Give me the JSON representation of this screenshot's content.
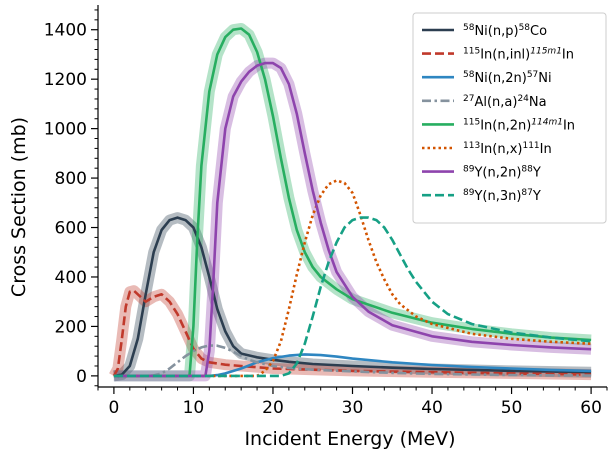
{
  "chart_data": {
    "type": "line",
    "xlabel": "Incident Energy (MeV)",
    "ylabel": "Cross Section (mb)",
    "xlim": [
      -2,
      62
    ],
    "ylim": [
      -45,
      1500
    ],
    "x_ticks": [
      0,
      10,
      20,
      30,
      40,
      50,
      60
    ],
    "y_ticks": [
      0,
      200,
      400,
      600,
      800,
      1000,
      1200,
      1400
    ],
    "x_tick_labels": [
      "0",
      "10",
      "20",
      "30",
      "40",
      "50",
      "60"
    ],
    "y_tick_labels": [
      "0",
      "200",
      "400",
      "600",
      "800",
      "1000",
      "1200",
      "1400"
    ],
    "legend_position": "top-right",
    "grid": false,
    "series": [
      {
        "name": "58Ni(n,p)58Co",
        "label_parts": [
          {
            "t": "58",
            "s": true
          },
          {
            "t": "Ni(n,p)"
          },
          {
            "t": "58",
            "s": true
          },
          {
            "t": "Co"
          }
        ],
        "color": "#2c3e50",
        "dash": "solid",
        "band": true,
        "x": [
          0,
          1,
          2,
          3,
          4,
          5,
          6,
          7,
          8,
          9,
          10,
          11,
          12,
          13,
          14,
          15,
          16,
          18,
          20,
          22,
          25,
          30,
          35,
          40,
          50,
          60
        ],
        "y": [
          0,
          5,
          40,
          150,
          330,
          500,
          590,
          630,
          640,
          630,
          600,
          520,
          400,
          270,
          180,
          120,
          90,
          75,
          65,
          57,
          48,
          40,
          33,
          28,
          20,
          15
        ]
      },
      {
        "name": "115In(n,inl)115m1In",
        "label_parts": [
          {
            "t": "115",
            "s": true
          },
          {
            "t": "In(n,inl)"
          },
          {
            "t": "115m1",
            "s": true,
            "i": true
          },
          {
            "t": "In"
          }
        ],
        "color": "#c0392b",
        "dash": "dashed",
        "band": true,
        "x": [
          0,
          0.5,
          1,
          1.5,
          2,
          2.5,
          3,
          4,
          5,
          6,
          7,
          8,
          9,
          10,
          11,
          12,
          14,
          16,
          18,
          20,
          25,
          30,
          40,
          50,
          60
        ],
        "y": [
          0,
          30,
          150,
          280,
          340,
          345,
          330,
          300,
          320,
          330,
          300,
          250,
          180,
          110,
          70,
          55,
          45,
          40,
          35,
          30,
          25,
          20,
          15,
          10,
          5
        ]
      },
      {
        "name": "58Ni(n,2n)57Ni",
        "label_parts": [
          {
            "t": "58",
            "s": true
          },
          {
            "t": "Ni(n,2n)"
          },
          {
            "t": "57",
            "s": true
          },
          {
            "t": "Ni"
          }
        ],
        "color": "#2e86c1",
        "dash": "solid",
        "band": false,
        "x": [
          0,
          12,
          13,
          14,
          16,
          18,
          20,
          22,
          24,
          26,
          28,
          30,
          35,
          40,
          45,
          50,
          55,
          60
        ],
        "y": [
          0,
          0,
          3,
          10,
          30,
          55,
          72,
          82,
          87,
          84,
          78,
          70,
          55,
          44,
          36,
          30,
          24,
          20
        ]
      },
      {
        "name": "27Al(n,a)24Na",
        "label_parts": [
          {
            "t": "27",
            "s": true
          },
          {
            "t": "Al(n,a)"
          },
          {
            "t": "24",
            "s": true
          },
          {
            "t": "Na"
          }
        ],
        "color": "#85929e",
        "dash": "dashdot",
        "band": false,
        "x": [
          0,
          4,
          5,
          6,
          7,
          8,
          9,
          10,
          11,
          12,
          13,
          14,
          15,
          16,
          17,
          18,
          20,
          22,
          25,
          30,
          35,
          40,
          50,
          60
        ],
        "y": [
          0,
          0,
          2,
          10,
          30,
          55,
          80,
          100,
          115,
          123,
          122,
          113,
          98,
          80,
          65,
          55,
          40,
          32,
          25,
          18,
          12,
          8,
          3,
          1
        ]
      },
      {
        "name": "115In(n,2n)114m1In",
        "label_parts": [
          {
            "t": "115",
            "s": true
          },
          {
            "t": "In(n,2n)"
          },
          {
            "t": "114m1",
            "s": true,
            "i": true
          },
          {
            "t": "In"
          }
        ],
        "color": "#27ae60",
        "dash": "solid",
        "band": true,
        "x": [
          0,
          9.5,
          10,
          10.5,
          11,
          12,
          13,
          14,
          15,
          16,
          17,
          18,
          19,
          20,
          21,
          22,
          23,
          24,
          25,
          26,
          28,
          30,
          35,
          40,
          45,
          50,
          55,
          60
        ],
        "y": [
          0,
          0,
          200,
          560,
          850,
          1150,
          1300,
          1370,
          1400,
          1405,
          1380,
          1310,
          1200,
          1050,
          880,
          720,
          590,
          500,
          440,
          400,
          350,
          310,
          255,
          215,
          190,
          170,
          155,
          145
        ]
      },
      {
        "name": "113In(n,x)111In",
        "label_parts": [
          {
            "t": "113",
            "s": true
          },
          {
            "t": "In(n,x)"
          },
          {
            "t": "111",
            "s": true
          },
          {
            "t": "In"
          }
        ],
        "color": "#d35400",
        "dash": "dotted",
        "band": false,
        "x": [
          0,
          18,
          19,
          20,
          21,
          22,
          23,
          24,
          25,
          26,
          27,
          28,
          29,
          30,
          31,
          32,
          33,
          34,
          35,
          36,
          38,
          40,
          45,
          50,
          55,
          60
        ],
        "y": [
          0,
          0,
          20,
          60,
          140,
          270,
          410,
          540,
          650,
          730,
          775,
          790,
          780,
          740,
          650,
          550,
          460,
          390,
          330,
          290,
          240,
          210,
          170,
          150,
          138,
          130
        ]
      },
      {
        "name": "89Y(n,2n)88Y",
        "label_parts": [
          {
            "t": "89",
            "s": true
          },
          {
            "t": "Y(n,2n)"
          },
          {
            "t": "88",
            "s": true
          },
          {
            "t": "Y"
          }
        ],
        "color": "#8e44ad",
        "dash": "solid",
        "band": true,
        "x": [
          0,
          11.5,
          12,
          12.5,
          13,
          14,
          15,
          16,
          17,
          18,
          19,
          20,
          21,
          22,
          23,
          24,
          25,
          26,
          27,
          28,
          30,
          32,
          35,
          40,
          45,
          50,
          55,
          60
        ],
        "y": [
          0,
          0,
          100,
          380,
          700,
          1000,
          1130,
          1190,
          1230,
          1255,
          1265,
          1265,
          1245,
          1180,
          1060,
          900,
          750,
          620,
          510,
          420,
          320,
          260,
          205,
          160,
          138,
          125,
          115,
          108
        ]
      },
      {
        "name": "89Y(n,3n)87Y",
        "label_parts": [
          {
            "t": "89",
            "s": true
          },
          {
            "t": "Y(n,3n)"
          },
          {
            "t": "87",
            "s": true
          },
          {
            "t": "Y"
          }
        ],
        "color": "#16a085",
        "dash": "dashed",
        "band": false,
        "x": [
          0,
          21,
          22,
          23,
          24,
          25,
          26,
          27,
          28,
          29,
          30,
          31,
          32,
          33,
          34,
          35,
          36,
          37,
          38,
          40,
          42,
          45,
          50,
          55,
          60
        ],
        "y": [
          0,
          0,
          10,
          50,
          130,
          240,
          360,
          460,
          540,
          600,
          630,
          640,
          640,
          630,
          600,
          550,
          490,
          430,
          380,
          300,
          250,
          210,
          175,
          155,
          140
        ]
      }
    ]
  }
}
